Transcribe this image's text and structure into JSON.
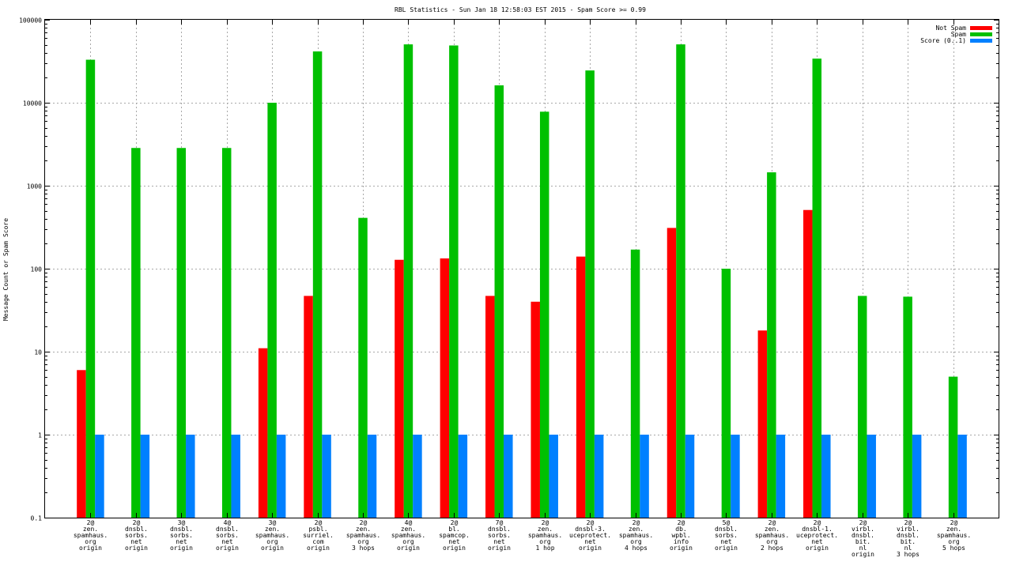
{
  "chart_data": {
    "type": "bar",
    "title": "RBL Statistics - Sun Jan 18 12:58:03 EST 2015 - Spam Score >= 0.99",
    "xlabel": "",
    "ylabel": "Message Count or Spam Score",
    "yscale": "log",
    "ylim": [
      0.1,
      100000
    ],
    "yticks": [
      "0.1",
      "1",
      "10",
      "100",
      "1000",
      "10000",
      "100000"
    ],
    "grid": true,
    "legend_position": "top-right",
    "categories": [
      [
        "2@",
        "zen.",
        "spamhaus.",
        "org",
        "origin"
      ],
      [
        "2@",
        "dnsbl.",
        "sorbs.",
        "net",
        "origin"
      ],
      [
        "3@",
        "dnsbl.",
        "sorbs.",
        "net",
        "origin"
      ],
      [
        "4@",
        "dnsbl.",
        "sorbs.",
        "net",
        "origin"
      ],
      [
        "3@",
        "zen.",
        "spamhaus.",
        "org",
        "origin"
      ],
      [
        "2@",
        "psbl.",
        "surriel.",
        "com",
        "origin"
      ],
      [
        "2@",
        "zen.",
        "spamhaus.",
        "org",
        "3 hops"
      ],
      [
        "4@",
        "zen.",
        "spamhaus.",
        "org",
        "origin"
      ],
      [
        "2@",
        "bl.",
        "spamcop.",
        "net",
        "origin"
      ],
      [
        "7@",
        "dnsbl.",
        "sorbs.",
        "net",
        "origin"
      ],
      [
        "2@",
        "zen.",
        "spamhaus.",
        "org",
        "1 hop"
      ],
      [
        "2@",
        "dnsbl-3.",
        "uceprotect.",
        "net",
        "origin"
      ],
      [
        "2@",
        "zen.",
        "spamhaus.",
        "org",
        "4 hops"
      ],
      [
        "2@",
        "db.",
        "wpbl.",
        "info",
        "origin"
      ],
      [
        "5@",
        "dnsbl.",
        "sorbs.",
        "net",
        "origin"
      ],
      [
        "2@",
        "zen.",
        "spamhaus.",
        "org",
        "2 hops"
      ],
      [
        "2@",
        "dnsbl-1.",
        "uceprotect.",
        "net",
        "origin"
      ],
      [
        "2@",
        "virbl.",
        "dnsbl.",
        "bit.",
        "nl",
        "origin"
      ],
      [
        "2@",
        "virbl.",
        "dnsbl.",
        "bit.",
        "nl",
        "3 hops"
      ],
      [
        "2@",
        "zen.",
        "spamhaus.",
        "org",
        "5 hops"
      ]
    ],
    "series": [
      {
        "name": "Not Spam",
        "color": "#ff0000",
        "values": [
          6,
          null,
          null,
          null,
          11,
          47,
          null,
          128,
          133,
          47,
          40,
          140,
          null,
          310,
          null,
          18,
          510,
          null,
          null,
          null
        ]
      },
      {
        "name": "Spam",
        "color": "#00c000",
        "values": [
          33000,
          2850,
          2850,
          2850,
          10000,
          41500,
          410,
          50500,
          49000,
          16200,
          7800,
          24500,
          170,
          50500,
          100,
          1450,
          34000,
          47,
          46,
          5
        ]
      },
      {
        "name": "Score (0..1)",
        "color": "#0080ff",
        "values": [
          1,
          1,
          1,
          1,
          1,
          1,
          1,
          1,
          1,
          1,
          1,
          1,
          1,
          1,
          1,
          1,
          1,
          1,
          1,
          1
        ]
      }
    ]
  }
}
